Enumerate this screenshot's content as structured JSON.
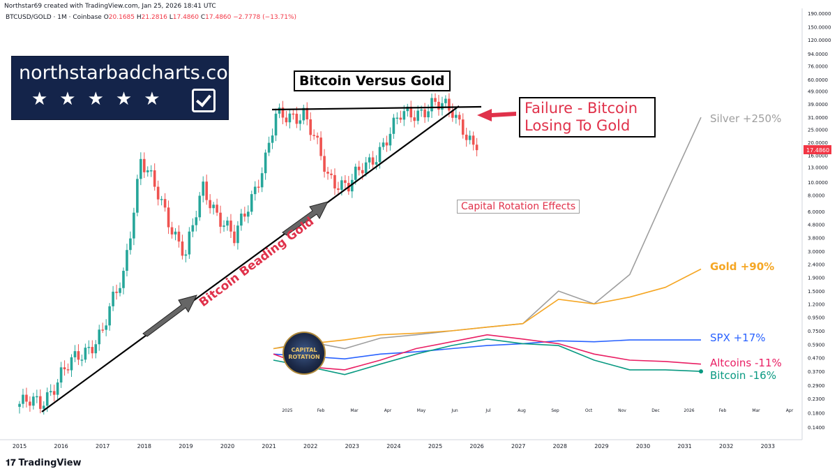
{
  "header": {
    "credit": "Northstar69 created with TradingView.com, Jan 25, 2026 18:41 UTC",
    "symbol": "BTCUSD/GOLD · 1M · Coinbase",
    "o_label": "O",
    "o_value": "20.1685",
    "h_label": "H",
    "h_value": "21.2816",
    "l_label": "L",
    "l_value": "17.4860",
    "c_label": "C",
    "c_value": "17.4860",
    "change": "−2.7778 (−13.71%)"
  },
  "brand": {
    "name": "northstarbadcharts.com",
    "stars": "★★★★★"
  },
  "footer": {
    "logo": "𝟏𝟕",
    "name": "TradingView"
  },
  "annotations": {
    "title": "Bitcoin Versus Gold",
    "failure": "Failure - Bitcoin Losing To Gold",
    "beading": "Bitcoin Beading Gold",
    "capital_rotation": "Capital Rotation Effects",
    "rotation_logo": "CAPITAL ROTATION",
    "silver": "Silver +250%",
    "gold": "Gold +90%",
    "spx": "SPX +17%",
    "altcoins": "Altcoins -11%",
    "bitcoin": "Bitcoin -16%"
  },
  "colors": {
    "up": "#26a69a",
    "down": "#ef5350",
    "silver": "#9e9e9e",
    "gold": "#f5a623",
    "spx": "#2962ff",
    "altcoins": "#e91e63",
    "bitcoin": "#089981",
    "price_tag": "#f23645",
    "annotation_red": "#e0314a"
  },
  "chart_data": [
    {
      "type": "candlestick",
      "name": "BTCUSD/GOLD",
      "interval": "1M",
      "scale": "log",
      "last_price": "17.4860",
      "y_ticks": [
        "190.0000",
        "150.0000",
        "120.0000",
        "94.0000",
        "76.0000",
        "60.0000",
        "49.0000",
        "39.0000",
        "31.0000",
        "25.0000",
        "20.0000",
        "16.0000",
        "13.0000",
        "10.0000",
        "8.0000",
        "6.0000",
        "4.8000",
        "3.8000",
        "3.0000",
        "2.4000",
        "1.9000",
        "1.5000",
        "1.2000",
        "0.9500",
        "0.7500",
        "0.5900",
        "0.4700",
        "0.3700",
        "0.2900",
        "0.2300",
        "0.1800",
        "0.1400"
      ],
      "x_ticks": [
        "2015",
        "2016",
        "2017",
        "2018",
        "2019",
        "2020",
        "2021",
        "2022",
        "2023",
        "2024",
        "2025",
        "2026",
        "2027",
        "2028",
        "2029",
        "2030",
        "2031",
        "2032",
        "2033"
      ],
      "closes": [
        {
          "x": "2015-01",
          "v": 0.21
        },
        {
          "x": "2015-07",
          "v": 0.21
        },
        {
          "x": "2016-01",
          "v": 0.35
        },
        {
          "x": "2016-07",
          "v": 0.5
        },
        {
          "x": "2017-01",
          "v": 0.75
        },
        {
          "x": "2017-07",
          "v": 2.0
        },
        {
          "x": "2017-12",
          "v": 15.0
        },
        {
          "x": "2018-07",
          "v": 6.0
        },
        {
          "x": "2019-01",
          "v": 2.8
        },
        {
          "x": "2019-06",
          "v": 9.0
        },
        {
          "x": "2020-03",
          "v": 3.6
        },
        {
          "x": "2020-12",
          "v": 15.0
        },
        {
          "x": "2021-03",
          "v": 30.0
        },
        {
          "x": "2021-11",
          "v": 34.0
        },
        {
          "x": "2022-06",
          "v": 11.0
        },
        {
          "x": "2022-12",
          "v": 9.5
        },
        {
          "x": "2023-06",
          "v": 14.0
        },
        {
          "x": "2024-03",
          "v": 31.0
        },
        {
          "x": "2024-12",
          "v": 38.0
        },
        {
          "x": "2025-06",
          "v": 35.0
        },
        {
          "x": "2025-09",
          "v": 27.0
        },
        {
          "x": "2025-12",
          "v": 18.0
        },
        {
          "x": "2026-01",
          "v": 17.486
        }
      ]
    },
    {
      "type": "line",
      "inset": true,
      "x_ticks": [
        "2025",
        "Feb",
        "Mar",
        "Apr",
        "May",
        "Jun",
        "Jul",
        "Aug",
        "Sep",
        "Oct",
        "Nov",
        "Dec",
        "2026",
        "Feb",
        "Mar",
        "Apr"
      ],
      "series": [
        {
          "name": "Silver +250%",
          "color": "#9e9e9e",
          "values": [
            0.55,
            0.62,
            0.55,
            0.66,
            0.7,
            0.75,
            0.8,
            0.85,
            1.5,
            1.2,
            2.0,
            8.0,
            31.0
          ]
        },
        {
          "name": "Gold +90%",
          "color": "#f5a623",
          "values": [
            0.55,
            0.6,
            0.64,
            0.7,
            0.72,
            0.75,
            0.8,
            0.85,
            1.3,
            1.2,
            1.35,
            1.6,
            2.2
          ]
        },
        {
          "name": "SPX +17%",
          "color": "#2962ff",
          "values": [
            0.5,
            0.48,
            0.46,
            0.5,
            0.52,
            0.55,
            0.58,
            0.6,
            0.63,
            0.62,
            0.64,
            0.64,
            0.64
          ]
        },
        {
          "name": "Altcoins -11%",
          "color": "#e91e63",
          "values": [
            0.5,
            0.4,
            0.38,
            0.45,
            0.55,
            0.62,
            0.7,
            0.65,
            0.6,
            0.5,
            0.45,
            0.44,
            0.42
          ]
        },
        {
          "name": "Bitcoin -16%",
          "color": "#089981",
          "values": [
            0.45,
            0.4,
            0.35,
            0.42,
            0.5,
            0.58,
            0.65,
            0.6,
            0.58,
            0.45,
            0.38,
            0.38,
            0.37
          ]
        }
      ]
    }
  ]
}
